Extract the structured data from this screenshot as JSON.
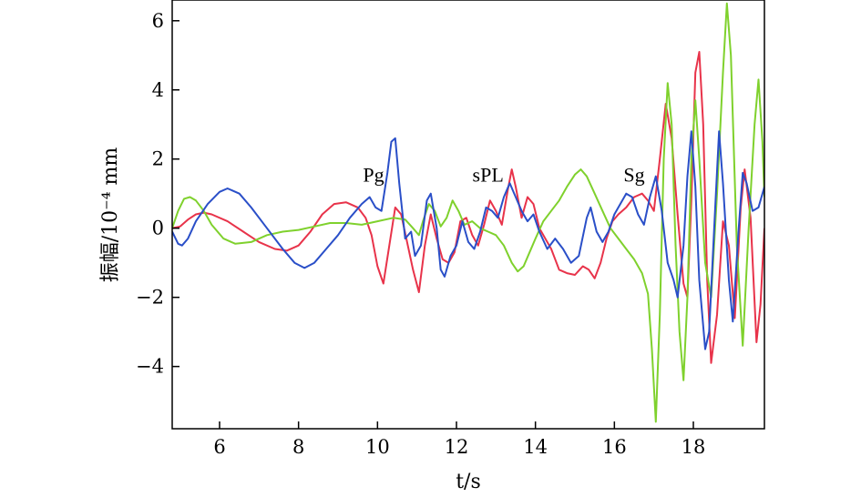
{
  "chart_data": {
    "type": "line",
    "title": "",
    "xlabel": "t/s",
    "ylabel": "振幅/10⁻⁴ mm",
    "xlim": [
      4.8,
      19.8
    ],
    "ylim": [
      -5.8,
      6.6
    ],
    "xticks": [
      6,
      8,
      10,
      12,
      14,
      16,
      18
    ],
    "yticks": [
      -4,
      -2,
      0,
      2,
      4,
      6
    ],
    "xtick_labels": [
      "6",
      "8",
      "10",
      "12",
      "14",
      "16",
      "18"
    ],
    "ytick_labels": [
      "−4",
      "−2",
      "0",
      "2",
      "4",
      "6"
    ],
    "grid": false,
    "legend": "none",
    "annotations": [
      {
        "text": "Pg",
        "x": 9.9,
        "y": 1.35
      },
      {
        "text": "sPL",
        "x": 12.8,
        "y": 1.35
      },
      {
        "text": "Sg",
        "x": 16.5,
        "y": 1.35
      }
    ],
    "series": [
      {
        "color": "#e8334a",
        "points": [
          [
            4.8,
            0
          ],
          [
            5.0,
            0.05
          ],
          [
            5.2,
            0.25
          ],
          [
            5.4,
            0.4
          ],
          [
            5.6,
            0.45
          ],
          [
            5.8,
            0.4
          ],
          [
            6.2,
            0.2
          ],
          [
            6.6,
            -0.1
          ],
          [
            7.0,
            -0.4
          ],
          [
            7.4,
            -0.6
          ],
          [
            7.7,
            -0.65
          ],
          [
            8.0,
            -0.5
          ],
          [
            8.3,
            -0.1
          ],
          [
            8.6,
            0.4
          ],
          [
            8.9,
            0.7
          ],
          [
            9.2,
            0.75
          ],
          [
            9.5,
            0.6
          ],
          [
            9.7,
            0.3
          ],
          [
            9.85,
            -0.2
          ],
          [
            10.0,
            -1.1
          ],
          [
            10.15,
            -1.6
          ],
          [
            10.3,
            -0.5
          ],
          [
            10.45,
            0.6
          ],
          [
            10.6,
            0.4
          ],
          [
            10.75,
            -0.4
          ],
          [
            10.9,
            -1.2
          ],
          [
            11.05,
            -1.85
          ],
          [
            11.2,
            -0.5
          ],
          [
            11.35,
            0.4
          ],
          [
            11.5,
            -0.3
          ],
          [
            11.65,
            -0.9
          ],
          [
            11.8,
            -1.0
          ],
          [
            11.95,
            -0.7
          ],
          [
            12.1,
            0.2
          ],
          [
            12.25,
            0.3
          ],
          [
            12.4,
            -0.2
          ],
          [
            12.55,
            -0.5
          ],
          [
            12.7,
            0.1
          ],
          [
            12.85,
            0.8
          ],
          [
            13.0,
            0.5
          ],
          [
            13.15,
            0.1
          ],
          [
            13.3,
            1.1
          ],
          [
            13.4,
            1.7
          ],
          [
            13.5,
            1.2
          ],
          [
            13.65,
            0.3
          ],
          [
            13.8,
            0.9
          ],
          [
            13.95,
            0.7
          ],
          [
            14.1,
            0.0
          ],
          [
            14.25,
            -0.3
          ],
          [
            14.4,
            -0.6
          ],
          [
            14.6,
            -1.2
          ],
          [
            14.8,
            -1.3
          ],
          [
            15.0,
            -1.35
          ],
          [
            15.2,
            -1.1
          ],
          [
            15.35,
            -1.2
          ],
          [
            15.5,
            -1.45
          ],
          [
            15.65,
            -1.0
          ],
          [
            15.8,
            -0.3
          ],
          [
            15.95,
            0.2
          ],
          [
            16.1,
            0.4
          ],
          [
            16.3,
            0.6
          ],
          [
            16.5,
            0.9
          ],
          [
            16.7,
            1.0
          ],
          [
            16.85,
            0.8
          ],
          [
            17.0,
            0.5
          ],
          [
            17.15,
            2.0
          ],
          [
            17.3,
            3.6
          ],
          [
            17.45,
            2.6
          ],
          [
            17.6,
            0.4
          ],
          [
            17.75,
            -1.6
          ],
          [
            17.85,
            -2.0
          ],
          [
            17.95,
            0.8
          ],
          [
            18.05,
            4.5
          ],
          [
            18.15,
            5.1
          ],
          [
            18.25,
            3.0
          ],
          [
            18.35,
            -1.5
          ],
          [
            18.45,
            -3.9
          ],
          [
            18.6,
            -2.5
          ],
          [
            18.75,
            0.2
          ],
          [
            18.9,
            -0.5
          ],
          [
            19.05,
            -2.6
          ],
          [
            19.2,
            0.6
          ],
          [
            19.3,
            1.7
          ],
          [
            19.45,
            0.3
          ],
          [
            19.6,
            -3.3
          ],
          [
            19.7,
            -2.2
          ],
          [
            19.8,
            0.0
          ]
        ]
      },
      {
        "color": "#7fd12d",
        "points": [
          [
            4.8,
            0
          ],
          [
            4.95,
            0.5
          ],
          [
            5.1,
            0.85
          ],
          [
            5.25,
            0.9
          ],
          [
            5.4,
            0.8
          ],
          [
            5.6,
            0.5
          ],
          [
            5.8,
            0.1
          ],
          [
            6.1,
            -0.3
          ],
          [
            6.4,
            -0.45
          ],
          [
            6.8,
            -0.4
          ],
          [
            7.2,
            -0.2
          ],
          [
            7.6,
            -0.1
          ],
          [
            8.0,
            -0.05
          ],
          [
            8.4,
            0.05
          ],
          [
            8.8,
            0.15
          ],
          [
            9.2,
            0.15
          ],
          [
            9.6,
            0.1
          ],
          [
            10.0,
            0.2
          ],
          [
            10.4,
            0.3
          ],
          [
            10.7,
            0.25
          ],
          [
            10.9,
            0.0
          ],
          [
            11.05,
            -0.2
          ],
          [
            11.15,
            0.2
          ],
          [
            11.3,
            0.7
          ],
          [
            11.45,
            0.5
          ],
          [
            11.6,
            0.05
          ],
          [
            11.75,
            0.3
          ],
          [
            11.9,
            0.8
          ],
          [
            12.05,
            0.5
          ],
          [
            12.2,
            0.1
          ],
          [
            12.4,
            0.2
          ],
          [
            12.6,
            0.0
          ],
          [
            12.8,
            -0.1
          ],
          [
            13.0,
            -0.2
          ],
          [
            13.2,
            -0.5
          ],
          [
            13.4,
            -1.0
          ],
          [
            13.55,
            -1.25
          ],
          [
            13.7,
            -1.1
          ],
          [
            13.85,
            -0.7
          ],
          [
            14.0,
            -0.3
          ],
          [
            14.2,
            0.2
          ],
          [
            14.4,
            0.5
          ],
          [
            14.6,
            0.8
          ],
          [
            14.8,
            1.2
          ],
          [
            15.0,
            1.55
          ],
          [
            15.15,
            1.7
          ],
          [
            15.3,
            1.5
          ],
          [
            15.5,
            1.0
          ],
          [
            15.7,
            0.5
          ],
          [
            15.9,
            0.0
          ],
          [
            16.1,
            -0.3
          ],
          [
            16.3,
            -0.6
          ],
          [
            16.5,
            -0.9
          ],
          [
            16.7,
            -1.3
          ],
          [
            16.85,
            -1.9
          ],
          [
            16.95,
            -3.5
          ],
          [
            17.05,
            -5.6
          ],
          [
            17.15,
            -2.5
          ],
          [
            17.25,
            2.0
          ],
          [
            17.35,
            4.2
          ],
          [
            17.45,
            3.0
          ],
          [
            17.55,
            -0.5
          ],
          [
            17.65,
            -3.0
          ],
          [
            17.75,
            -4.4
          ],
          [
            17.85,
            -2.0
          ],
          [
            17.95,
            2.0
          ],
          [
            18.05,
            3.7
          ],
          [
            18.15,
            2.0
          ],
          [
            18.3,
            -1.0
          ],
          [
            18.45,
            -2.0
          ],
          [
            18.6,
            1.0
          ],
          [
            18.75,
            4.5
          ],
          [
            18.85,
            6.5
          ],
          [
            18.95,
            5.0
          ],
          [
            19.1,
            -0.5
          ],
          [
            19.25,
            -3.4
          ],
          [
            19.4,
            0.0
          ],
          [
            19.55,
            3.0
          ],
          [
            19.65,
            4.3
          ],
          [
            19.75,
            2.5
          ],
          [
            19.8,
            0.9
          ]
        ]
      },
      {
        "color": "#2a4fc8",
        "points": [
          [
            4.8,
            -0.1
          ],
          [
            4.95,
            -0.45
          ],
          [
            5.05,
            -0.5
          ],
          [
            5.2,
            -0.3
          ],
          [
            5.4,
            0.2
          ],
          [
            5.7,
            0.7
          ],
          [
            6.0,
            1.05
          ],
          [
            6.2,
            1.15
          ],
          [
            6.5,
            1.0
          ],
          [
            6.8,
            0.6
          ],
          [
            7.2,
            0.0
          ],
          [
            7.6,
            -0.6
          ],
          [
            7.9,
            -1.0
          ],
          [
            8.15,
            -1.15
          ],
          [
            8.4,
            -1.0
          ],
          [
            8.7,
            -0.6
          ],
          [
            9.0,
            -0.2
          ],
          [
            9.3,
            0.3
          ],
          [
            9.6,
            0.7
          ],
          [
            9.8,
            0.9
          ],
          [
            9.95,
            0.6
          ],
          [
            10.1,
            0.5
          ],
          [
            10.25,
            1.6
          ],
          [
            10.35,
            2.5
          ],
          [
            10.45,
            2.6
          ],
          [
            10.55,
            1.3
          ],
          [
            10.7,
            -0.3
          ],
          [
            10.85,
            -0.1
          ],
          [
            10.95,
            -0.8
          ],
          [
            11.1,
            -0.5
          ],
          [
            11.25,
            0.8
          ],
          [
            11.35,
            1.0
          ],
          [
            11.5,
            0.0
          ],
          [
            11.6,
            -1.2
          ],
          [
            11.7,
            -1.4
          ],
          [
            11.85,
            -0.8
          ],
          [
            12.0,
            -0.5
          ],
          [
            12.15,
            0.2
          ],
          [
            12.3,
            -0.4
          ],
          [
            12.45,
            -0.6
          ],
          [
            12.6,
            -0.1
          ],
          [
            12.75,
            0.6
          ],
          [
            12.9,
            0.5
          ],
          [
            13.05,
            0.3
          ],
          [
            13.2,
            0.9
          ],
          [
            13.35,
            1.3
          ],
          [
            13.5,
            0.9
          ],
          [
            13.65,
            0.5
          ],
          [
            13.8,
            0.2
          ],
          [
            13.95,
            0.4
          ],
          [
            14.1,
            -0.1
          ],
          [
            14.3,
            -0.6
          ],
          [
            14.5,
            -0.3
          ],
          [
            14.7,
            -0.6
          ],
          [
            14.9,
            -1.0
          ],
          [
            15.1,
            -0.8
          ],
          [
            15.3,
            0.3
          ],
          [
            15.4,
            0.6
          ],
          [
            15.55,
            -0.1
          ],
          [
            15.7,
            -0.4
          ],
          [
            15.85,
            -0.1
          ],
          [
            16.0,
            0.4
          ],
          [
            16.15,
            0.7
          ],
          [
            16.3,
            1.0
          ],
          [
            16.45,
            0.9
          ],
          [
            16.6,
            0.4
          ],
          [
            16.75,
            0.1
          ],
          [
            16.9,
            0.9
          ],
          [
            17.05,
            1.5
          ],
          [
            17.2,
            0.5
          ],
          [
            17.35,
            -1.0
          ],
          [
            17.5,
            -1.5
          ],
          [
            17.6,
            -2.0
          ],
          [
            17.75,
            -0.5
          ],
          [
            17.85,
            1.5
          ],
          [
            17.95,
            2.8
          ],
          [
            18.05,
            1.2
          ],
          [
            18.15,
            -1.5
          ],
          [
            18.3,
            -3.5
          ],
          [
            18.4,
            -3.0
          ],
          [
            18.55,
            0.5
          ],
          [
            18.65,
            2.8
          ],
          [
            18.75,
            1.3
          ],
          [
            18.9,
            -1.5
          ],
          [
            19.0,
            -2.7
          ],
          [
            19.15,
            0.0
          ],
          [
            19.25,
            1.6
          ],
          [
            19.35,
            1.3
          ],
          [
            19.5,
            0.5
          ],
          [
            19.65,
            0.6
          ],
          [
            19.8,
            1.2
          ]
        ]
      }
    ]
  }
}
